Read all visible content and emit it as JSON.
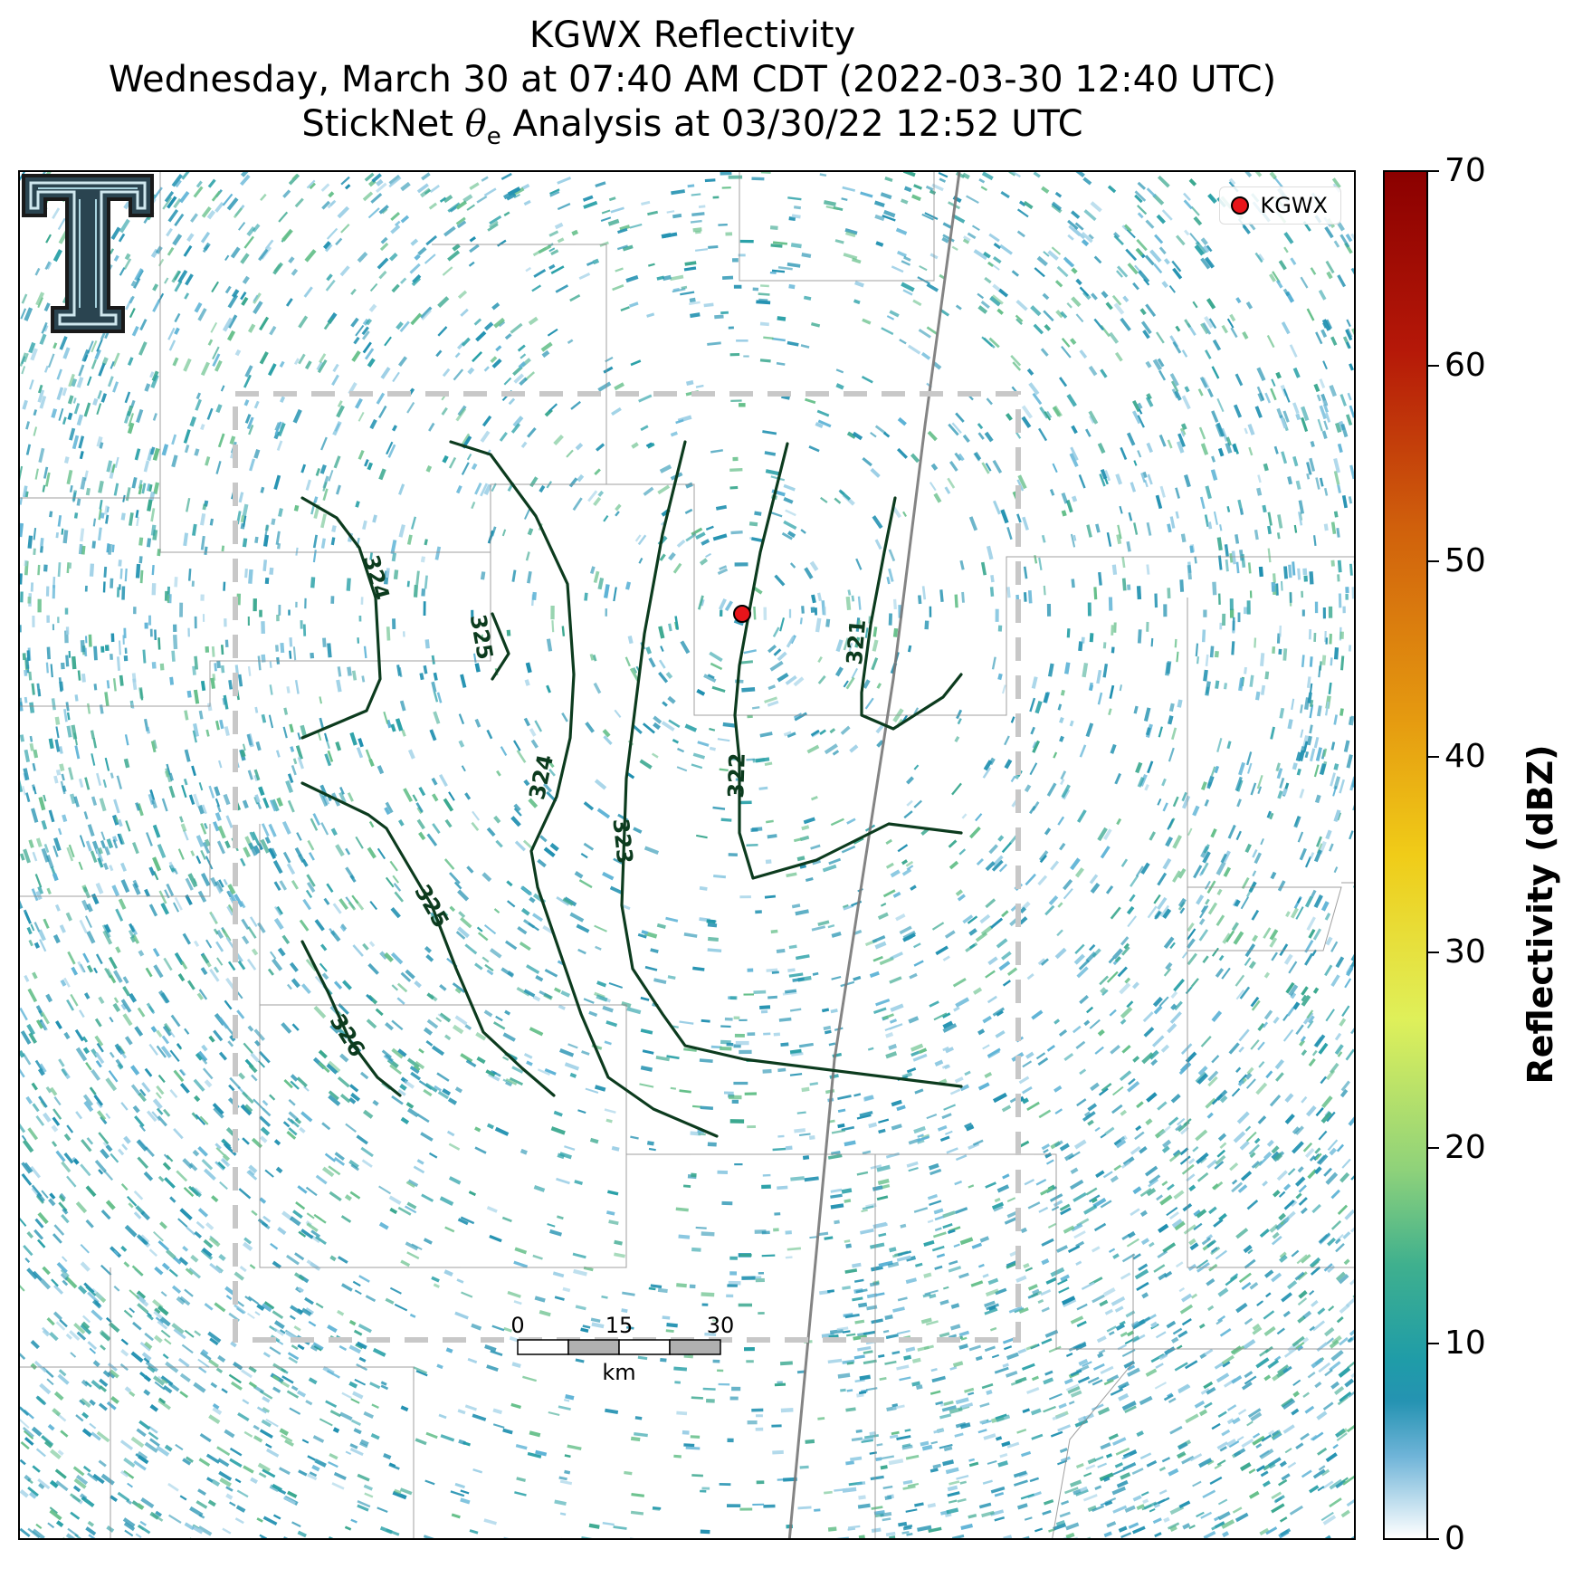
{
  "title": {
    "line1": "KGWX Reflectivity",
    "line2": "Wednesday, March 30 at 07:40 AM CDT (2022-03-30 12:40 UTC)",
    "line3_prefix": "StickNet ",
    "line3_symbol": "θ",
    "line3_subscript": "e",
    "line3_suffix": " Analysis at 03/30/22 12:52 UTC"
  },
  "legend": {
    "label": "KGWX",
    "marker_color": "#e8141a"
  },
  "colorbar": {
    "label": "Reflectivity (dBZ)",
    "range": [
      0,
      70
    ],
    "ticks": [
      "0",
      "10",
      "20",
      "30",
      "40",
      "50",
      "60",
      "70"
    ]
  },
  "contour_labels": [
    "324",
    "325",
    "324",
    "323",
    "322",
    "321",
    "325",
    "326"
  ],
  "scale_bar": {
    "ticks": [
      "0",
      "15",
      "30"
    ],
    "unit": "km"
  },
  "colors": {
    "contour": "#0c3b1e",
    "echo_primary": "#2593b2",
    "echo_light": "#9ccfe6",
    "domain_box": "#c8c8c8"
  }
}
